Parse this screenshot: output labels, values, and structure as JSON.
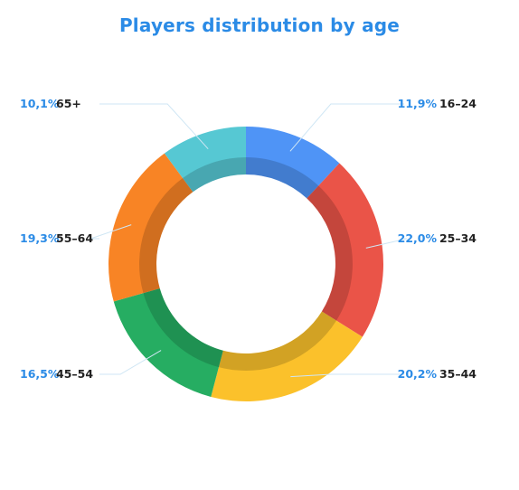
{
  "chart_data": {
    "type": "pie",
    "title": "Players distribution by age",
    "categories": [
      "16-24",
      "25-34",
      "35-44",
      "45-54",
      "55-64",
      "65+"
    ],
    "values": [
      11.9,
      22.0,
      20.2,
      16.5,
      19.3,
      10.1
    ],
    "value_labels": [
      "11,9%",
      "22,0%",
      "20,2%",
      "16,5%",
      "19,3%",
      "10,1%"
    ],
    "display_labels": [
      "16–24",
      "25–34",
      "35–44",
      "45–54",
      "55–64",
      "65+"
    ],
    "colors": [
      "#4f94f6",
      "#ea5448",
      "#fbc12b",
      "#26ad62",
      "#f88425",
      "#56c8d3"
    ],
    "donut": true,
    "legend": "none"
  }
}
